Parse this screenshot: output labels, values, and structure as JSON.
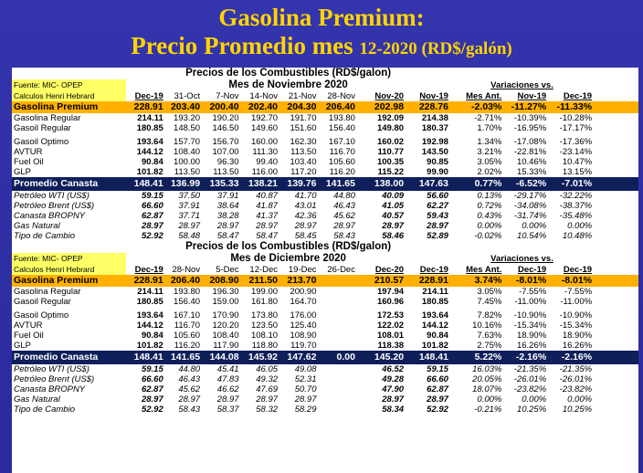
{
  "title": {
    "line1": "Gasolina Premium:",
    "line2_main": "Precio Promedio mes",
    "line2_small": "12-2020 (RD$/galón)"
  },
  "blocks": [
    {
      "heading": "Precios de los Combustibles (RD$/galon)",
      "subheading": "Mes de Noviembre 2020",
      "source1": "Fuente: MIC- OPEP",
      "source2": "Calculos Henri Hebrard",
      "variaciones": "Variaciones vs.",
      "headers": [
        "Dec-19",
        "31-Oct",
        "7-Nov",
        "14-Nov",
        "21-Nov",
        "28-Nov",
        "Nov-20",
        "Nov-19",
        "Mes Ant.",
        "Nov-19",
        "Dec-19"
      ],
      "premium": {
        "label": "Gasolina Premium",
        "v": [
          "228.91",
          "203.40",
          "200.40",
          "202.40",
          "204.30",
          "206.40",
          "202.98",
          "228.76",
          "-2.03%",
          "-11.27%",
          "-11.33%"
        ]
      },
      "rows1": [
        {
          "label": "Gasolina Regular",
          "v": [
            "214.11",
            "193.20",
            "190.20",
            "192.70",
            "191.70",
            "193.80",
            "192.09",
            "214.38",
            "-2.71%",
            "-10.39%",
            "-10.28%"
          ]
        },
        {
          "label": "Gasoil Regular",
          "v": [
            "180.85",
            "148.50",
            "146.50",
            "149.60",
            "151.60",
            "156.40",
            "149.80",
            "180.37",
            "1.70%",
            "-16.95%",
            "-17.17%"
          ]
        }
      ],
      "rows2": [
        {
          "label": "Gasoil Optimo",
          "v": [
            "193.64",
            "157.70",
            "156.70",
            "160.00",
            "162.30",
            "167.10",
            "160.02",
            "192.98",
            "1.34%",
            "-17.08%",
            "-17.36%"
          ]
        },
        {
          "label": "AVTUR",
          "v": [
            "144.12",
            "108.40",
            "107.00",
            "111.30",
            "113.50",
            "116.70",
            "110.77",
            "143.50",
            "3.21%",
            "-22.81%",
            "-23.14%"
          ]
        },
        {
          "label": "Fuel Oil",
          "v": [
            "90.84",
            "100.00",
            "96.30",
            "99.40",
            "103.40",
            "105.60",
            "100.35",
            "90.85",
            "3.05%",
            "10.46%",
            "10.47%"
          ]
        },
        {
          "label": "GLP",
          "v": [
            "101.82",
            "113.50",
            "113.50",
            "116.00",
            "117.20",
            "116.20",
            "115.22",
            "99.90",
            "2.02%",
            "15.33%",
            "13.15%"
          ]
        }
      ],
      "canasta": {
        "label": "Promedio Canasta",
        "v": [
          "148.41",
          "136.99",
          "135.33",
          "138.21",
          "139.76",
          "141.65",
          "138.00",
          "147.63",
          "0.77%",
          "-6.52%",
          "-7.01%"
        ]
      },
      "italic": [
        {
          "label": "Petróleo WTI (US$)",
          "v": [
            "59.15",
            "37.50",
            "37.91",
            "40.87",
            "41.70",
            "44.80",
            "40.09",
            "56.60",
            "0.13%",
            "-29.17%",
            "-32.22%"
          ]
        },
        {
          "label": "Petróleo Brent (US$)",
          "v": [
            "66.60",
            "37.91",
            "38.64",
            "41.87",
            "43.01",
            "46.43",
            "41.05",
            "62.27",
            "0.72%",
            "-34.08%",
            "-38.37%"
          ]
        },
        {
          "label": "Canasta BROPNY",
          "v": [
            "62.87",
            "37.71",
            "38.28",
            "41.37",
            "42.36",
            "45.62",
            "40.57",
            "59.43",
            "0.43%",
            "-31.74%",
            "-35.48%"
          ]
        },
        {
          "label": "Gas Natural",
          "v": [
            "28.97",
            "28.97",
            "28.97",
            "28.97",
            "28.97",
            "28.97",
            "28.97",
            "28.97",
            "0.00%",
            "0.00%",
            "0.00%"
          ]
        },
        {
          "label": "Tipo de Cambio",
          "v": [
            "52.92",
            "58.48",
            "58.47",
            "58.47",
            "58.45",
            "58.43",
            "58.46",
            "52.89",
            "-0.02%",
            "10.54%",
            "10.48%"
          ]
        }
      ]
    },
    {
      "heading": "Precios de los Combustibles (RD$/galon)",
      "subheading": "Mes de Diciembre 2020",
      "source1": "Fuente: MIC- OPEP",
      "source2": "Calculos Henri Hebrard",
      "variaciones": "Variaciones vs.",
      "headers": [
        "Dec-19",
        "28-Nov",
        "5-Dec",
        "12-Dec",
        "19-Dec",
        "26-Dec",
        "Dec-20",
        "Dec-19",
        "Mes Ant.",
        "Dec-19",
        "Dec-19"
      ],
      "premium": {
        "label": "Gasolina Premium",
        "v": [
          "228.91",
          "206.40",
          "208.90",
          "211.50",
          "213.70",
          "",
          "210.57",
          "228.91",
          "3.74%",
          "-8.01%",
          "-8.01%"
        ]
      },
      "rows1": [
        {
          "label": "Gasolina Regular",
          "v": [
            "214.11",
            "193.80",
            "196.30",
            "199.00",
            "200.90",
            "",
            "197.94",
            "214.11",
            "3.05%",
            "-7.55%",
            "-7.55%"
          ]
        },
        {
          "label": "Gasoil Regular",
          "v": [
            "180.85",
            "156.40",
            "159.00",
            "161.80",
            "164.70",
            "",
            "160.96",
            "180.85",
            "7.45%",
            "-11.00%",
            "-11.00%"
          ]
        }
      ],
      "rows2": [
        {
          "label": "Gasoil Optimo",
          "v": [
            "193.64",
            "167.10",
            "170.90",
            "173.80",
            "176.00",
            "",
            "172.53",
            "193.64",
            "7.82%",
            "-10.90%",
            "-10.90%"
          ]
        },
        {
          "label": "AVTUR",
          "v": [
            "144.12",
            "116.70",
            "120.20",
            "123.50",
            "125.40",
            "",
            "122.02",
            "144.12",
            "10.16%",
            "-15.34%",
            "-15.34%"
          ]
        },
        {
          "label": "Fuel Oil",
          "v": [
            "90.84",
            "105.60",
            "108.40",
            "108.10",
            "108.90",
            "",
            "108.01",
            "90.84",
            "7.63%",
            "18.90%",
            "18.90%"
          ]
        },
        {
          "label": "GLP",
          "v": [
            "101.82",
            "116.20",
            "117.90",
            "118.80",
            "119.70",
            "",
            "118.38",
            "101.82",
            "2.75%",
            "16.26%",
            "16.26%"
          ]
        }
      ],
      "canasta": {
        "label": "Promedio Canasta",
        "v": [
          "148.41",
          "141.65",
          "144.08",
          "145.92",
          "147.62",
          "0.00",
          "145.20",
          "148.41",
          "5.22%",
          "-2.16%",
          "-2.16%"
        ]
      },
      "italic": [
        {
          "label": "Petróleo WTI (US$)",
          "v": [
            "59.15",
            "44.80",
            "45.41",
            "46.05",
            "49.08",
            "",
            "46.52",
            "59.15",
            "16.03%",
            "-21.35%",
            "-21.35%"
          ]
        },
        {
          "label": "Petróleo Brent (US$)",
          "v": [
            "66.60",
            "46.43",
            "47.83",
            "49.32",
            "52.31",
            "",
            "49.28",
            "66.60",
            "20.05%",
            "-26.01%",
            "-26.01%"
          ]
        },
        {
          "label": "Canasta BROPNY",
          "v": [
            "62.87",
            "45.62",
            "46.62",
            "47.69",
            "50.70",
            "",
            "47.90",
            "62.87",
            "18.07%",
            "-23.82%",
            "-23.82%"
          ]
        },
        {
          "label": "Gas Natural",
          "v": [
            "28.97",
            "28.97",
            "28.97",
            "28.97",
            "28.97",
            "",
            "28.97",
            "28.97",
            "0.00%",
            "0.00%",
            "0.00%"
          ]
        },
        {
          "label": "Tipo de Cambio",
          "v": [
            "52.92",
            "58.43",
            "58.37",
            "58.32",
            "58.29",
            "",
            "58.34",
            "52.92",
            "-0.21%",
            "10.25%",
            "10.25%"
          ]
        }
      ]
    }
  ],
  "colors": {
    "background": "#2f2fa6",
    "title": "#ffd400",
    "premium_row": "#ffb000",
    "canasta_row": "#0f1f5a",
    "source_label": "#ffff66"
  }
}
